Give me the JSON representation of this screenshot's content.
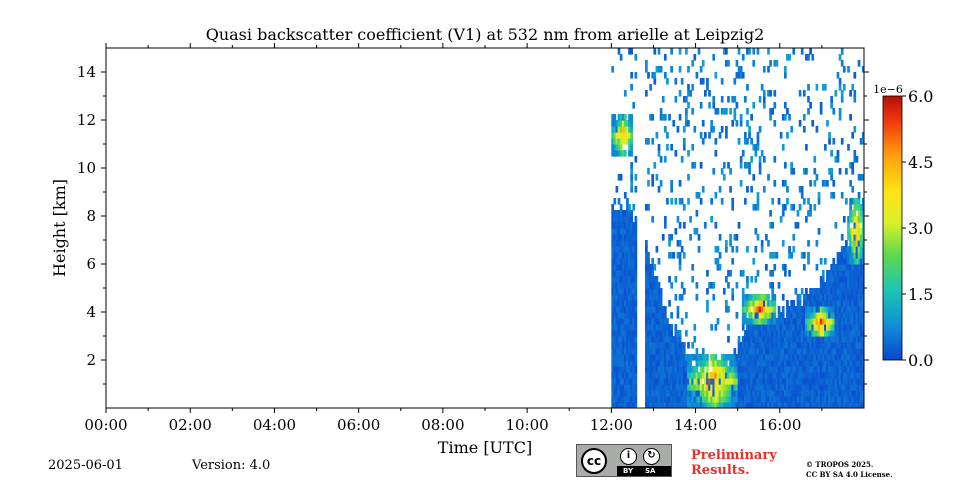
{
  "chart_data": {
    "type": "heatmap",
    "title": "Quasi backscatter coefficient (V1) at 532 nm from arielle at Leipzig2",
    "xlabel": "Time [UTC]",
    "ylabel": "Height [km]",
    "xlim": [
      0,
      18
    ],
    "ylim": [
      0,
      15
    ],
    "x_tick_values": [
      0,
      2,
      4,
      6,
      8,
      10,
      12,
      14,
      16
    ],
    "x_tick_labels": [
      "00:00",
      "02:00",
      "04:00",
      "06:00",
      "08:00",
      "10:00",
      "12:00",
      "14:00",
      "16:00"
    ],
    "y_tick_values": [
      2,
      4,
      6,
      8,
      10,
      12,
      14
    ],
    "y_tick_labels": [
      "2",
      "4",
      "6",
      "8",
      "10",
      "12",
      "14"
    ],
    "colorbar": {
      "min": 0.0,
      "max": 6.0,
      "tick_values": [
        0,
        1.5,
        3,
        4.5,
        6
      ],
      "tick_labels": [
        "0.0",
        "1.5",
        "3.0",
        "4.5",
        "6.0"
      ],
      "exponent_label": "1e−6",
      "colormap": [
        "#0a46d0",
        "#0f8fd6",
        "#1ec7b0",
        "#62d84a",
        "#d8f02c",
        "#ffe214",
        "#ffa20c",
        "#f23c0c",
        "#b80d08"
      ]
    },
    "data_start_time": 12.0,
    "data_gaps": [
      [
        12.62,
        12.8
      ]
    ],
    "background_level_top_km": {
      "times": [
        12.0,
        12.5,
        12.9,
        13.3,
        13.6,
        14.0,
        14.5,
        15.0,
        15.5,
        16.0,
        16.5,
        17.0,
        17.5,
        18.0
      ],
      "heights": [
        8.3,
        8.2,
        6.5,
        4.0,
        3.0,
        1.0,
        1.5,
        2.5,
        4.5,
        4.0,
        4.5,
        5.2,
        6.5,
        7.5
      ]
    },
    "strong_layers": [
      {
        "name": "cirrus-left",
        "time_range": [
          12.0,
          12.5
        ],
        "height_range": [
          10.5,
          12.2
        ],
        "value_max": 5.5
      },
      {
        "name": "cloud-15h",
        "time_range": [
          15.1,
          15.9
        ],
        "height_range": [
          3.5,
          4.8
        ],
        "value_max": 6.0
      },
      {
        "name": "cloud-17h",
        "time_range": [
          16.6,
          17.3
        ],
        "height_range": [
          2.9,
          4.2
        ],
        "value_max": 6.0
      },
      {
        "name": "cloud-18h",
        "time_range": [
          17.6,
          18.0
        ],
        "height_range": [
          6.0,
          8.8
        ],
        "value_max": 5.5
      },
      {
        "name": "fall-streaks-14h",
        "time_range": [
          13.8,
          15.0
        ],
        "height_range": [
          0.0,
          2.2
        ],
        "value_max": 6.0
      }
    ]
  },
  "footer": {
    "date": "2025-06-01",
    "version": "Version: 4.0",
    "license_badge": {
      "cc": "cc",
      "by": "BY",
      "sa": "SA"
    },
    "preliminary_line1": "Preliminary",
    "preliminary_line2": "Results.",
    "copyright_line1": "© TROPOS 2025.",
    "copyright_line2": "CC BY SA 4.0 License."
  }
}
